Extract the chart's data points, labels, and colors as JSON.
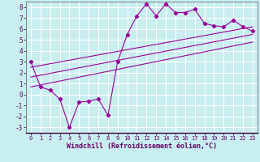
{
  "title": "",
  "xlabel": "Windchill (Refroidissement éolien,°C)",
  "ylabel": "",
  "bg_color": "#c8eef0",
  "grid_color": "#ffffff",
  "line_color": "#990099",
  "label_color": "#660066",
  "xlim": [
    -0.5,
    23.5
  ],
  "ylim": [
    -3.5,
    8.5
  ],
  "yticks": [
    -3,
    -2,
    -1,
    0,
    1,
    2,
    3,
    4,
    5,
    6,
    7,
    8
  ],
  "xticks": [
    0,
    1,
    2,
    3,
    4,
    5,
    6,
    7,
    8,
    9,
    10,
    11,
    12,
    13,
    14,
    15,
    16,
    17,
    18,
    19,
    20,
    21,
    22,
    23
  ],
  "data_x": [
    0,
    1,
    2,
    3,
    4,
    5,
    6,
    7,
    8,
    9,
    10,
    11,
    12,
    13,
    14,
    15,
    16,
    17,
    18,
    19,
    20,
    21,
    22,
    23
  ],
  "data_y": [
    3.0,
    0.7,
    0.4,
    -0.4,
    -3.0,
    -0.7,
    -0.6,
    -0.4,
    -1.9,
    3.0,
    5.5,
    7.2,
    8.3,
    7.2,
    8.3,
    7.5,
    7.5,
    7.8,
    6.5,
    6.3,
    6.2,
    6.8,
    6.2,
    5.8
  ],
  "trend1_x": [
    0,
    23
  ],
  "trend1_y": [
    2.5,
    6.2
  ],
  "trend2_x": [
    0,
    23
  ],
  "trend2_y": [
    1.6,
    5.5
  ],
  "trend3_x": [
    0,
    23
  ],
  "trend3_y": [
    0.7,
    4.8
  ]
}
